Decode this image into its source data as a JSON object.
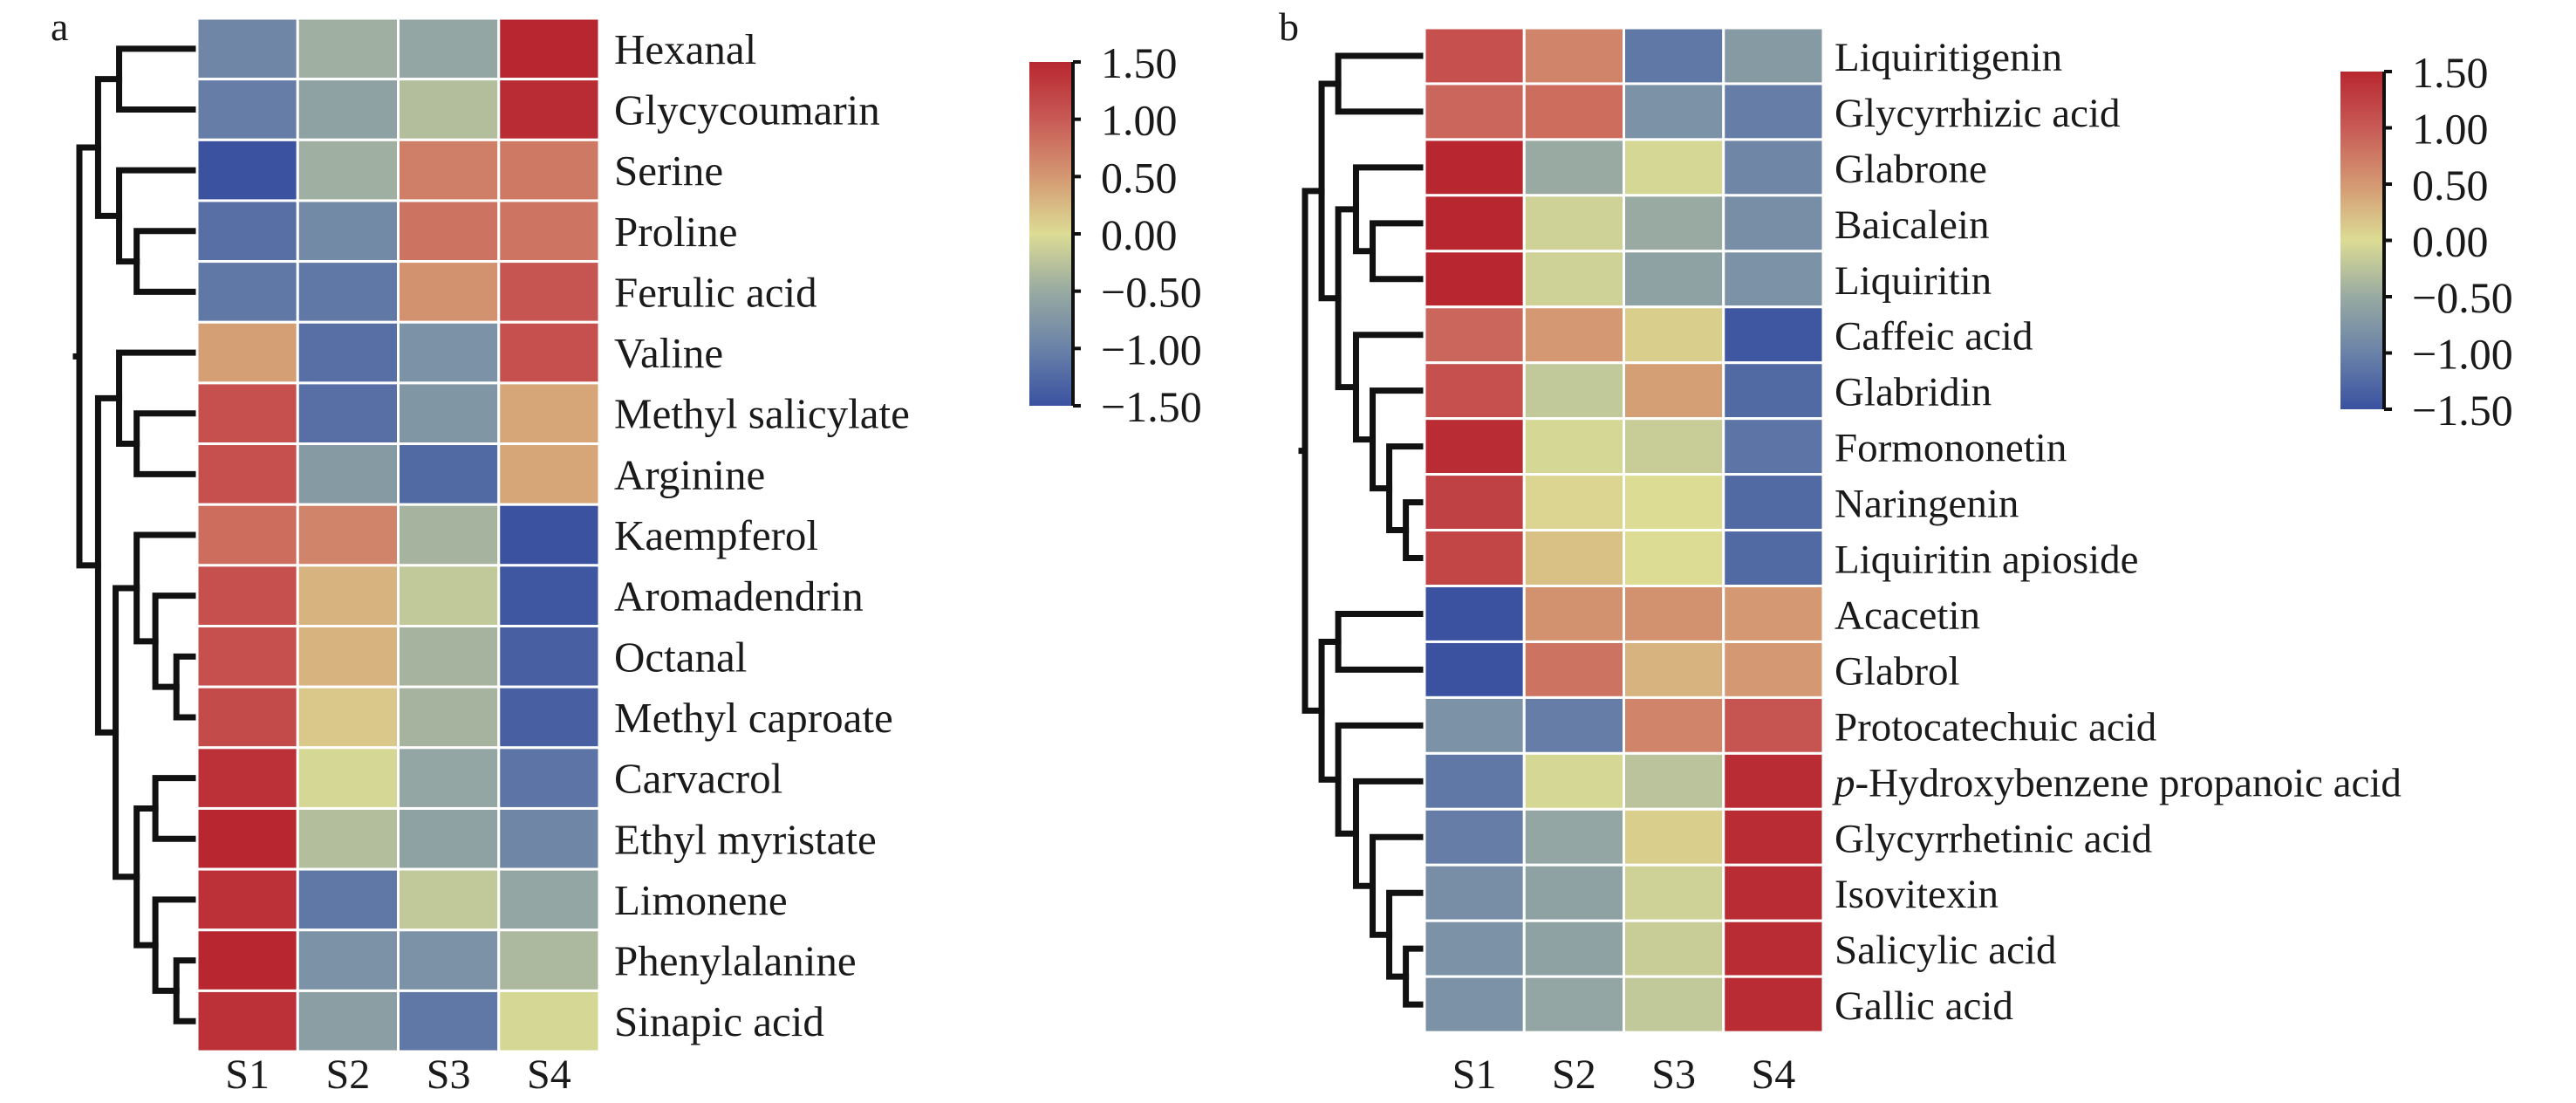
{
  "chart_data": [
    {
      "type": "heatmap",
      "panel_label": "a",
      "columns": [
        "S1",
        "S2",
        "S3",
        "S4"
      ],
      "rows": [
        {
          "label": "Hexanal",
          "values": [
            -0.95,
            -0.45,
            -0.55,
            1.5
          ]
        },
        {
          "label": "Glycycoumarin",
          "values": [
            -1.05,
            -0.6,
            -0.3,
            1.45
          ]
        },
        {
          "label": "Serine",
          "values": [
            -1.5,
            -0.45,
            0.7,
            0.75
          ]
        },
        {
          "label": "Proline",
          "values": [
            -1.2,
            -0.9,
            0.8,
            0.78
          ]
        },
        {
          "label": "Ferulic acid",
          "values": [
            -1.1,
            -1.1,
            0.55,
            1.05
          ]
        },
        {
          "label": "Valine",
          "values": [
            0.45,
            -1.2,
            -0.8,
            1.1
          ]
        },
        {
          "label": "Methyl salicylate",
          "values": [
            1.1,
            -1.2,
            -0.75,
            0.4
          ]
        },
        {
          "label": "Arginine",
          "values": [
            1.1,
            -0.7,
            -1.25,
            0.4
          ]
        },
        {
          "label": "Kaempferol",
          "values": [
            0.85,
            0.65,
            -0.4,
            -1.5
          ]
        },
        {
          "label": "Aromadendrin",
          "values": [
            1.1,
            0.3,
            -0.2,
            -1.45
          ]
        },
        {
          "label": "Octanal",
          "values": [
            1.1,
            0.3,
            -0.4,
            -1.35
          ]
        },
        {
          "label": "Methyl caproate",
          "values": [
            1.15,
            0.15,
            -0.4,
            -1.35
          ]
        },
        {
          "label": "Carvacrol",
          "values": [
            1.4,
            -0.05,
            -0.55,
            -1.15
          ]
        },
        {
          "label": "Ethyl myristate",
          "values": [
            1.5,
            -0.3,
            -0.6,
            -0.95
          ]
        },
        {
          "label": "Limonene",
          "values": [
            1.4,
            -1.1,
            -0.2,
            -0.55
          ]
        },
        {
          "label": "Phenylalanine",
          "values": [
            1.5,
            -0.8,
            -0.8,
            -0.35
          ]
        },
        {
          "label": "Sinapic acid",
          "values": [
            1.4,
            -0.65,
            -1.1,
            -0.05
          ]
        }
      ],
      "dendrogram": {
        "orientation": "left",
        "merges": [
          [
            0,
            1,
            0.66
          ],
          [
            3,
            4,
            0.51
          ],
          [
            2,
            "n1",
            0.66
          ],
          [
            "n0",
            "n2",
            0.84
          ],
          [
            6,
            7,
            0.51
          ],
          [
            5,
            "n4",
            0.66
          ],
          [
            10,
            11,
            0.17
          ],
          [
            9,
            "n6",
            0.35
          ],
          [
            8,
            "n7",
            0.51
          ],
          [
            12,
            13,
            0.35
          ],
          [
            15,
            16,
            0.17
          ],
          [
            14,
            "n10",
            0.35
          ],
          [
            "n9",
            "n11",
            0.51
          ],
          [
            "n8",
            "n12",
            0.69
          ],
          [
            "n5",
            "n13",
            0.84
          ],
          [
            "n3",
            "n14",
            1.0
          ]
        ]
      },
      "colorbar": {
        "range": [
          -1.5,
          1.5
        ],
        "ticks": [
          "1.50",
          "1.00",
          "0.50",
          "0.00",
          "−0.50",
          "−1.00",
          "−1.50"
        ],
        "tick_values": [
          1.5,
          1.0,
          0.5,
          0.0,
          -0.5,
          -1.0,
          -1.5
        ],
        "colormap": [
          {
            "value": -1.5,
            "color": "#3a52a0"
          },
          {
            "value": -1.0,
            "color": "#6a82a8"
          },
          {
            "value": -0.5,
            "color": "#98aaa2"
          },
          {
            "value": 0.0,
            "color": "#dcdc94"
          },
          {
            "value": 0.5,
            "color": "#d49872"
          },
          {
            "value": 1.0,
            "color": "#c85a56"
          },
          {
            "value": 1.5,
            "color": "#b8272f"
          }
        ]
      }
    },
    {
      "type": "heatmap",
      "panel_label": "b",
      "columns": [
        "S1",
        "S2",
        "S3",
        "S4"
      ],
      "rows": [
        {
          "label": "Liquiritigenin",
          "values": [
            1.1,
            0.65,
            -1.1,
            -0.7
          ]
        },
        {
          "label": "Glycyrrhizic acid",
          "values": [
            0.9,
            0.85,
            -0.8,
            -1.05
          ]
        },
        {
          "label": "Glabrone",
          "values": [
            1.5,
            -0.5,
            -0.05,
            -0.95
          ]
        },
        {
          "label": "Baicalein",
          "values": [
            1.5,
            -0.1,
            -0.5,
            -0.85
          ]
        },
        {
          "label": "Liquiritin",
          "values": [
            1.5,
            -0.1,
            -0.6,
            -0.8
          ]
        },
        {
          "label": "Caffeic acid",
          "values": [
            0.9,
            0.5,
            0.1,
            -1.45
          ]
        },
        {
          "label": "Glabridin",
          "values": [
            1.1,
            -0.2,
            0.45,
            -1.25
          ]
        },
        {
          "label": "Formononetin",
          "values": [
            1.45,
            -0.05,
            -0.15,
            -1.15
          ]
        },
        {
          "label": "Naringenin",
          "values": [
            1.25,
            0.05,
            0.0,
            -1.25
          ]
        },
        {
          "label": "Liquiritin apioside",
          "values": [
            1.2,
            0.2,
            0.0,
            -1.25
          ]
        },
        {
          "label": "Acacetin",
          "values": [
            -1.5,
            0.55,
            0.55,
            0.5
          ]
        },
        {
          "label": "Glabrol",
          "values": [
            -1.5,
            0.8,
            0.3,
            0.5
          ]
        },
        {
          "label": "Protocatechuic acid",
          "values": [
            -0.8,
            -1.05,
            0.65,
            1.05
          ]
        },
        {
          "label": "-Hydroxybenzene propanoic acid",
          "italic_prefix": "p",
          "values": [
            -1.1,
            -0.05,
            -0.25,
            1.45
          ]
        },
        {
          "label": "Glycyrrhetinic acid",
          "values": [
            -1.05,
            -0.55,
            0.1,
            1.45
          ]
        },
        {
          "label": "Isovitexin",
          "values": [
            -0.85,
            -0.6,
            -0.1,
            1.45
          ]
        },
        {
          "label": "Salicylic acid",
          "values": [
            -0.8,
            -0.6,
            -0.15,
            1.45
          ]
        },
        {
          "label": "Gallic acid",
          "values": [
            -0.8,
            -0.55,
            -0.2,
            1.45
          ]
        }
      ],
      "dendrogram": {
        "orientation": "left",
        "merges": [
          [
            0,
            1,
            0.72
          ],
          [
            3,
            4,
            0.43
          ],
          [
            2,
            "n1",
            0.57
          ],
          [
            8,
            9,
            0.15
          ],
          [
            7,
            "n3",
            0.29
          ],
          [
            6,
            "n4",
            0.43
          ],
          [
            5,
            "n5",
            0.57
          ],
          [
            "n2",
            "n6",
            0.72
          ],
          [
            "n0",
            "n7",
            0.86
          ],
          [
            10,
            11,
            0.72
          ],
          [
            16,
            17,
            0.15
          ],
          [
            15,
            "n10",
            0.29
          ],
          [
            14,
            "n11",
            0.43
          ],
          [
            13,
            "n12",
            0.57
          ],
          [
            12,
            "n13",
            0.72
          ],
          [
            "n9",
            "n14",
            0.86
          ],
          [
            "n8",
            "n15",
            1.0
          ]
        ]
      },
      "colorbar": {
        "range": [
          -1.5,
          1.5
        ],
        "ticks": [
          "1.50",
          "1.00",
          "0.50",
          "0.00",
          "−0.50",
          "−1.00",
          "−1.50"
        ],
        "tick_values": [
          1.5,
          1.0,
          0.5,
          0.0,
          -0.5,
          -1.0,
          -1.5
        ],
        "colormap": [
          {
            "value": -1.5,
            "color": "#3a52a0"
          },
          {
            "value": -1.0,
            "color": "#6a82a8"
          },
          {
            "value": -0.5,
            "color": "#98aaa2"
          },
          {
            "value": 0.0,
            "color": "#dcdc94"
          },
          {
            "value": 0.5,
            "color": "#d49872"
          },
          {
            "value": 1.0,
            "color": "#c85a56"
          },
          {
            "value": 1.5,
            "color": "#b8272f"
          }
        ]
      }
    }
  ]
}
